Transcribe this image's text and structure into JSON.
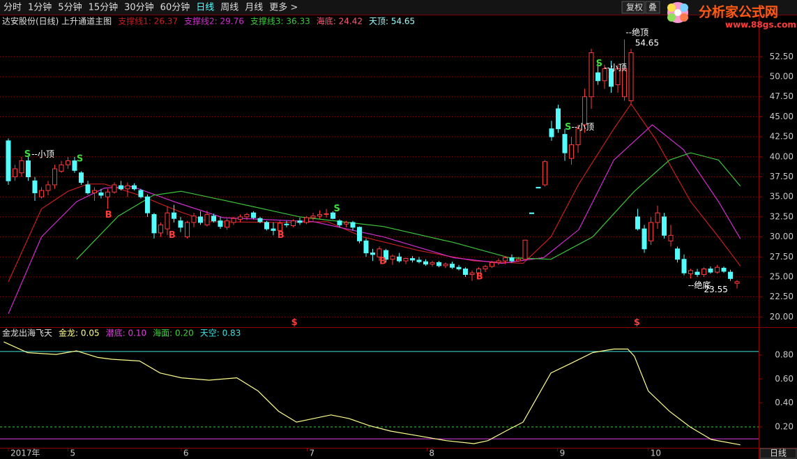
{
  "toolbar": {
    "tabs": [
      "分时",
      "1分钟",
      "5分钟",
      "15分钟",
      "30分钟",
      "60分钟",
      "日线",
      "周线",
      "月线",
      "更多 >"
    ],
    "active": 6,
    "buttons": [
      "复权",
      "叠"
    ]
  },
  "logo": {
    "title": "分析家公式网",
    "url": "www.88gs.com"
  },
  "period_label": "日线",
  "chart_data": [
    {
      "type": "candlestick",
      "title": "达安股份(日线) 上升通道主图",
      "x": [
        0,
        1,
        2,
        3,
        4,
        5,
        6,
        7,
        8,
        9,
        10,
        11,
        12,
        13,
        14,
        15,
        16,
        17,
        18,
        19,
        20,
        21,
        22,
        23,
        24,
        25,
        26,
        27,
        28,
        29,
        30,
        31,
        32,
        33,
        34,
        35,
        36,
        37,
        38,
        39,
        40,
        41,
        42,
        43,
        44,
        45,
        46,
        47,
        48,
        49,
        50,
        51,
        52,
        53,
        54,
        55,
        56,
        57,
        58,
        59,
        60,
        61,
        62,
        63,
        64,
        65,
        66,
        67,
        68,
        69,
        70,
        71,
        72,
        73,
        74,
        75,
        76,
        77,
        78,
        79,
        80,
        81,
        82,
        83,
        84,
        85,
        86,
        87,
        88,
        89,
        90,
        91,
        92,
        93,
        94,
        95,
        96,
        97,
        98,
        99,
        100,
        101,
        102,
        103,
        104,
        105,
        106,
        107,
        108,
        109,
        110
      ],
      "open": [
        42,
        37.5,
        38,
        39.5,
        37,
        35,
        35.8,
        36.5,
        38.2,
        39,
        39.5,
        38,
        36.5,
        35.5,
        35.5,
        35,
        35.6,
        36.4,
        36,
        36.4,
        35.8,
        35,
        32.8,
        30.5,
        31,
        33,
        32,
        30,
        31.8,
        32.5,
        31.5,
        32.6,
        32,
        31.2,
        31.8,
        32.2,
        32.5,
        33,
        32.3,
        31.8,
        31,
        30.8,
        31.6,
        31.4,
        32,
        31.8,
        32.4,
        32.6,
        32.8,
        33,
        32,
        31.6,
        31.8,
        31.2,
        29.5,
        28,
        27.5,
        28.3,
        27.2,
        27.5,
        27,
        27.3,
        27.1,
        26.9,
        26.6,
        26.8,
        26.4,
        26.6,
        26.2,
        26,
        25.3,
        25.5,
        26,
        26.3,
        26.8,
        27,
        27.4,
        27,
        27.2,
        33,
        36.2,
        36.5,
        43.5,
        46,
        42.8,
        39.8,
        41.5,
        44,
        47.5,
        50.5,
        49.5,
        51,
        49,
        47.5,
        47,
        32.5,
        31,
        29.5,
        31.8,
        32.5,
        29.5,
        28.5,
        27.2,
        25.4,
        25.6,
        25.3,
        26,
        25.6,
        26.1,
        25.6,
        24.2
      ],
      "high": [
        42.3,
        39,
        40,
        40,
        37.5,
        36.2,
        37,
        39,
        39.5,
        40,
        40,
        38.2,
        37,
        36.2,
        36,
        36,
        36.8,
        37,
        36.8,
        36.7,
        36,
        35.3,
        33,
        31.8,
        33.8,
        34,
        32.5,
        32,
        33,
        33.2,
        33.3,
        32.9,
        32.5,
        32.3,
        32.5,
        32.8,
        33,
        33.2,
        32.5,
        32,
        31.8,
        32,
        32,
        32.2,
        32.4,
        32.6,
        33,
        33.3,
        33.5,
        33.2,
        32.2,
        32,
        32,
        31.3,
        29.8,
        28.5,
        28.8,
        28.5,
        27.8,
        28,
        27.4,
        27.6,
        27.5,
        27.2,
        27,
        27,
        26.8,
        26.9,
        26.5,
        26.2,
        25.8,
        26.2,
        26.5,
        27,
        27.3,
        27.6,
        27.8,
        27.5,
        29.6,
        33,
        36.2,
        39.6,
        44.5,
        46.5,
        43.5,
        42.5,
        44,
        48.5,
        53.5,
        52,
        51.5,
        52,
        51.5,
        54.65,
        53.5,
        33.5,
        31.5,
        32.5,
        33.9,
        33,
        31.5,
        28.8,
        27.8,
        26,
        26,
        26.2,
        26.3,
        26.5,
        26.3,
        25.9,
        24.6
      ],
      "low": [
        36.5,
        37,
        37.5,
        37,
        34.5,
        34.8,
        35.2,
        36,
        38,
        38.5,
        38,
        36.5,
        35.3,
        34.5,
        34.8,
        33.5,
        35.4,
        35.8,
        35,
        35.8,
        34.8,
        32.5,
        29.8,
        30,
        30.2,
        31.8,
        30.6,
        29.8,
        31.2,
        31.5,
        31.3,
        31.8,
        31,
        30.9,
        31.5,
        31.8,
        32.1,
        32.2,
        31.7,
        30.8,
        30.2,
        30.6,
        31.2,
        31.2,
        31.5,
        31.6,
        32,
        32.3,
        32.4,
        32.2,
        31.2,
        31.2,
        30.8,
        29.2,
        27.5,
        27,
        27,
        26.8,
        26.5,
        26.8,
        26.6,
        26.8,
        26.7,
        26.4,
        26.3,
        26.2,
        26.1,
        26,
        25.8,
        25,
        24.5,
        25.3,
        25.6,
        26.1,
        26.5,
        26.6,
        26.8,
        26.9,
        27.2,
        32.9,
        36.1,
        36.3,
        42,
        43,
        39.5,
        39,
        40.5,
        43,
        46,
        49,
        48.5,
        48,
        48,
        47,
        46.5,
        30.8,
        28,
        29,
        31,
        29.8,
        28.8,
        26.8,
        25.2,
        24.8,
        25,
        25,
        25.4,
        25.4,
        25.5,
        24.5,
        23.55
      ],
      "close": [
        37,
        38.5,
        39.5,
        37.5,
        35.5,
        35.8,
        36.5,
        38.5,
        39,
        39.5,
        38.3,
        36.8,
        35.5,
        35.8,
        35.2,
        35.6,
        36.5,
        36,
        36.4,
        36,
        35,
        33,
        30.5,
        31.5,
        33,
        32.3,
        31.2,
        31.8,
        32.6,
        31.8,
        32.8,
        32,
        31.3,
        32,
        32.3,
        32.5,
        32.8,
        32.4,
        31.9,
        31,
        30.8,
        31.7,
        31.5,
        32,
        31.8,
        32.4,
        32.6,
        32.8,
        32.9,
        32.3,
        31.5,
        31.8,
        31.2,
        29.5,
        28,
        27.8,
        28.5,
        27.2,
        27.6,
        27,
        27.3,
        27.1,
        26.9,
        26.6,
        26.8,
        26.4,
        26.6,
        26.2,
        26,
        25.3,
        25.5,
        26,
        26.3,
        26.8,
        27,
        27.4,
        27,
        27.2,
        29.6,
        32.9,
        36.1,
        39.4,
        42.5,
        43.5,
        40.5,
        41.5,
        43.5,
        47.5,
        53,
        49.5,
        51,
        48.8,
        51,
        51,
        53,
        31,
        28.5,
        31.8,
        33,
        30.2,
        30.2,
        27.2,
        25.5,
        25.8,
        25.3,
        26,
        25.6,
        26.2,
        25.7,
        24.8,
        24.4
      ],
      "up_color": "#ff3c3c",
      "down_color": "#54fcfc",
      "xlim": [
        -1.26,
        113.26
      ],
      "xticks": [
        {
          "value": 0,
          "label": "2017年"
        },
        {
          "value": 9,
          "label": "5"
        },
        {
          "value": 26.1,
          "label": "6"
        },
        {
          "value": 45.1,
          "label": "7"
        },
        {
          "value": 63.2,
          "label": "8"
        },
        {
          "value": 82.9,
          "label": "9"
        },
        {
          "value": 96.6,
          "label": "10"
        }
      ],
      "ylim": [
        18.9,
        56.1
      ],
      "yticks": [
        {
          "value": 20,
          "label": "20.00"
        },
        {
          "value": 22.5,
          "label": "22.50"
        },
        {
          "value": 25,
          "label": "25.00"
        },
        {
          "value": 27.5,
          "label": "27.50"
        },
        {
          "value": 30,
          "label": "30.00"
        },
        {
          "value": 32.5,
          "label": "32.50"
        },
        {
          "value": 35,
          "label": "35.00"
        },
        {
          "value": 37.5,
          "label": "37.50"
        },
        {
          "value": 40,
          "label": "40.00"
        },
        {
          "value": 42.5,
          "label": "42.50"
        },
        {
          "value": 45,
          "label": "45.00"
        },
        {
          "value": 47.5,
          "label": "47.50"
        },
        {
          "value": 50,
          "label": "50.00"
        },
        {
          "value": 52.5,
          "label": "52.50"
        }
      ],
      "grid": true,
      "series": [
        {
          "name": "支撑线1: 26.37",
          "color": "#c81e1e",
          "x": [
            0,
            5,
            9,
            12,
            14.5,
            19.8,
            26,
            30.3,
            40.8,
            48.2,
            53.5,
            61.9,
            70.3,
            77.7,
            81.9,
            86.1,
            91.4,
            94,
            97.7,
            103,
            107.2,
            110.5
          ],
          "values": [
            24.4,
            33.5,
            35.7,
            36.6,
            36.6,
            35.2,
            33.1,
            31.9,
            31.8,
            31.9,
            30,
            28.3,
            27,
            26.7,
            30,
            36.6,
            43.5,
            46.6,
            42.2,
            34.4,
            30,
            26.37
          ]
        },
        {
          "name": "支撑线2: 29.76",
          "color": "#d02cd0",
          "x": [
            0,
            5,
            10.3,
            14.5,
            18.7,
            25,
            32.4,
            46.1,
            56.6,
            67.2,
            74.5,
            80.8,
            86.1,
            91.4,
            97.2,
            101.9,
            107.2,
            110.5
          ],
          "values": [
            20.4,
            30,
            34.4,
            36.1,
            36.3,
            34.4,
            32.4,
            31.9,
            30,
            27.4,
            26.7,
            27.4,
            30.9,
            39.6,
            44,
            40.9,
            34.4,
            29.76
          ]
        },
        {
          "name": "支撑线3: 36.33",
          "color": "#3cc83c",
          "x": [
            10.3,
            16.6,
            21.9,
            26.1,
            33.5,
            44,
            56.6,
            67.2,
            75.6,
            81.9,
            88.2,
            94.5,
            99.8,
            103,
            107.2,
            110.5
          ],
          "values": [
            27.2,
            32.6,
            35.2,
            35.7,
            34.4,
            32.5,
            31.3,
            29.3,
            27.4,
            27.2,
            30,
            35.7,
            39.6,
            40.5,
            39.6,
            36.33
          ]
        }
      ],
      "header": [
        {
          "text": "海底: 24.42",
          "color": "#ff5a78"
        },
        {
          "text": "天顶: 54.65",
          "color": "#9ff"
        }
      ],
      "annotations": [
        {
          "text": "S",
          "x": 2.4,
          "y": 40.3,
          "color": "#3cdc3c"
        },
        {
          "text": "--小顶",
          "x": 3.5,
          "y": 40.3,
          "color": "#fff"
        },
        {
          "text": "S",
          "x": 10.3,
          "y": 39.7,
          "color": "#3cdc3c"
        },
        {
          "text": "B",
          "x": 14.6,
          "y": 32.7,
          "color": "#ff3c3c"
        },
        {
          "text": "B",
          "x": 24.2,
          "y": 30.2,
          "color": "#ff3c3c"
        },
        {
          "text": "B",
          "x": 40.6,
          "y": 30.2,
          "color": "#ff3c3c"
        },
        {
          "text": "S",
          "x": 49.1,
          "y": 33.5,
          "color": "#3cdc3c"
        },
        {
          "text": "B",
          "x": 56,
          "y": 26.9,
          "color": "#ff3c3c"
        },
        {
          "text": "B",
          "x": 70.6,
          "y": 25,
          "color": "#ff3c3c"
        },
        {
          "text": "S",
          "x": 84,
          "y": 43.7,
          "color": "#3cdc3c"
        },
        {
          "text": "--小顶",
          "x": 85,
          "y": 43.7,
          "color": "#fff"
        },
        {
          "text": "S",
          "x": 88.7,
          "y": 51.6,
          "color": "#3cdc3c"
        },
        {
          "text": "--小顶",
          "x": 89.9,
          "y": 51.1,
          "color": "#fff"
        },
        {
          "text": "--绝顶",
          "x": 93.2,
          "y": 55.5,
          "color": "#fff"
        },
        {
          "text": "54.65",
          "x": 94.6,
          "y": 54.2,
          "color": "#fff"
        },
        {
          "text": "--绝底",
          "x": 102.6,
          "y": 23.9,
          "color": "#fff"
        },
        {
          "text": "23.55",
          "x": 105,
          "y": 23.4,
          "color": "#fff"
        },
        {
          "text": "$",
          "x": 42.7,
          "y": 19.3,
          "color": "#ff3c3c"
        },
        {
          "text": "$",
          "x": 94.4,
          "y": 19.3,
          "color": "#ff3c3c"
        }
      ]
    },
    {
      "type": "line",
      "title": "金龙出海飞天",
      "series": [
        {
          "name": "金龙: 0.05",
          "color": "#ffff8c",
          "x": [
            -0.7,
            2.9,
            7.2,
            10.3,
            13.5,
            15.6,
            19.8,
            22.9,
            26.1,
            30.3,
            34.5,
            37.7,
            40.8,
            43.5,
            46.1,
            48.7,
            51.4,
            54.5,
            57.7,
            61.9,
            66.1,
            70.3,
            72.4,
            75.6,
            77.7,
            79.8,
            81.9,
            85.1,
            88.2,
            91.4,
            93.5,
            94.5,
            96.6,
            99.8,
            102.9,
            106.1,
            110.5
          ],
          "values": [
            0.91,
            0.82,
            0.805,
            0.835,
            0.78,
            0.765,
            0.75,
            0.65,
            0.61,
            0.59,
            0.61,
            0.5,
            0.33,
            0.24,
            0.27,
            0.3,
            0.27,
            0.21,
            0.165,
            0.125,
            0.085,
            0.06,
            0.085,
            0.18,
            0.24,
            0.445,
            0.65,
            0.735,
            0.82,
            0.85,
            0.85,
            0.79,
            0.5,
            0.33,
            0.2,
            0.095,
            0.05
          ]
        }
      ],
      "reference_lines": [
        {
          "label": "潜底: 0.10",
          "value": 0.1,
          "color": "#e040e0",
          "dash": false
        },
        {
          "label": "海面: 0.20",
          "value": 0.2,
          "color": "#40d040",
          "dash": true
        },
        {
          "label": "天空: 0.83",
          "value": 0.83,
          "color": "#40e0e0",
          "dash": false
        }
      ],
      "xlim": [
        -1.26,
        113.26
      ],
      "ylim": [
        0.025,
        1.027
      ],
      "yticks": [
        {
          "value": 0.2,
          "label": "0.20"
        },
        {
          "value": 0.4,
          "label": "0.40"
        },
        {
          "value": 0.6,
          "label": "0.60"
        },
        {
          "value": 0.8,
          "label": "0.80"
        }
      ],
      "grid": false
    }
  ]
}
